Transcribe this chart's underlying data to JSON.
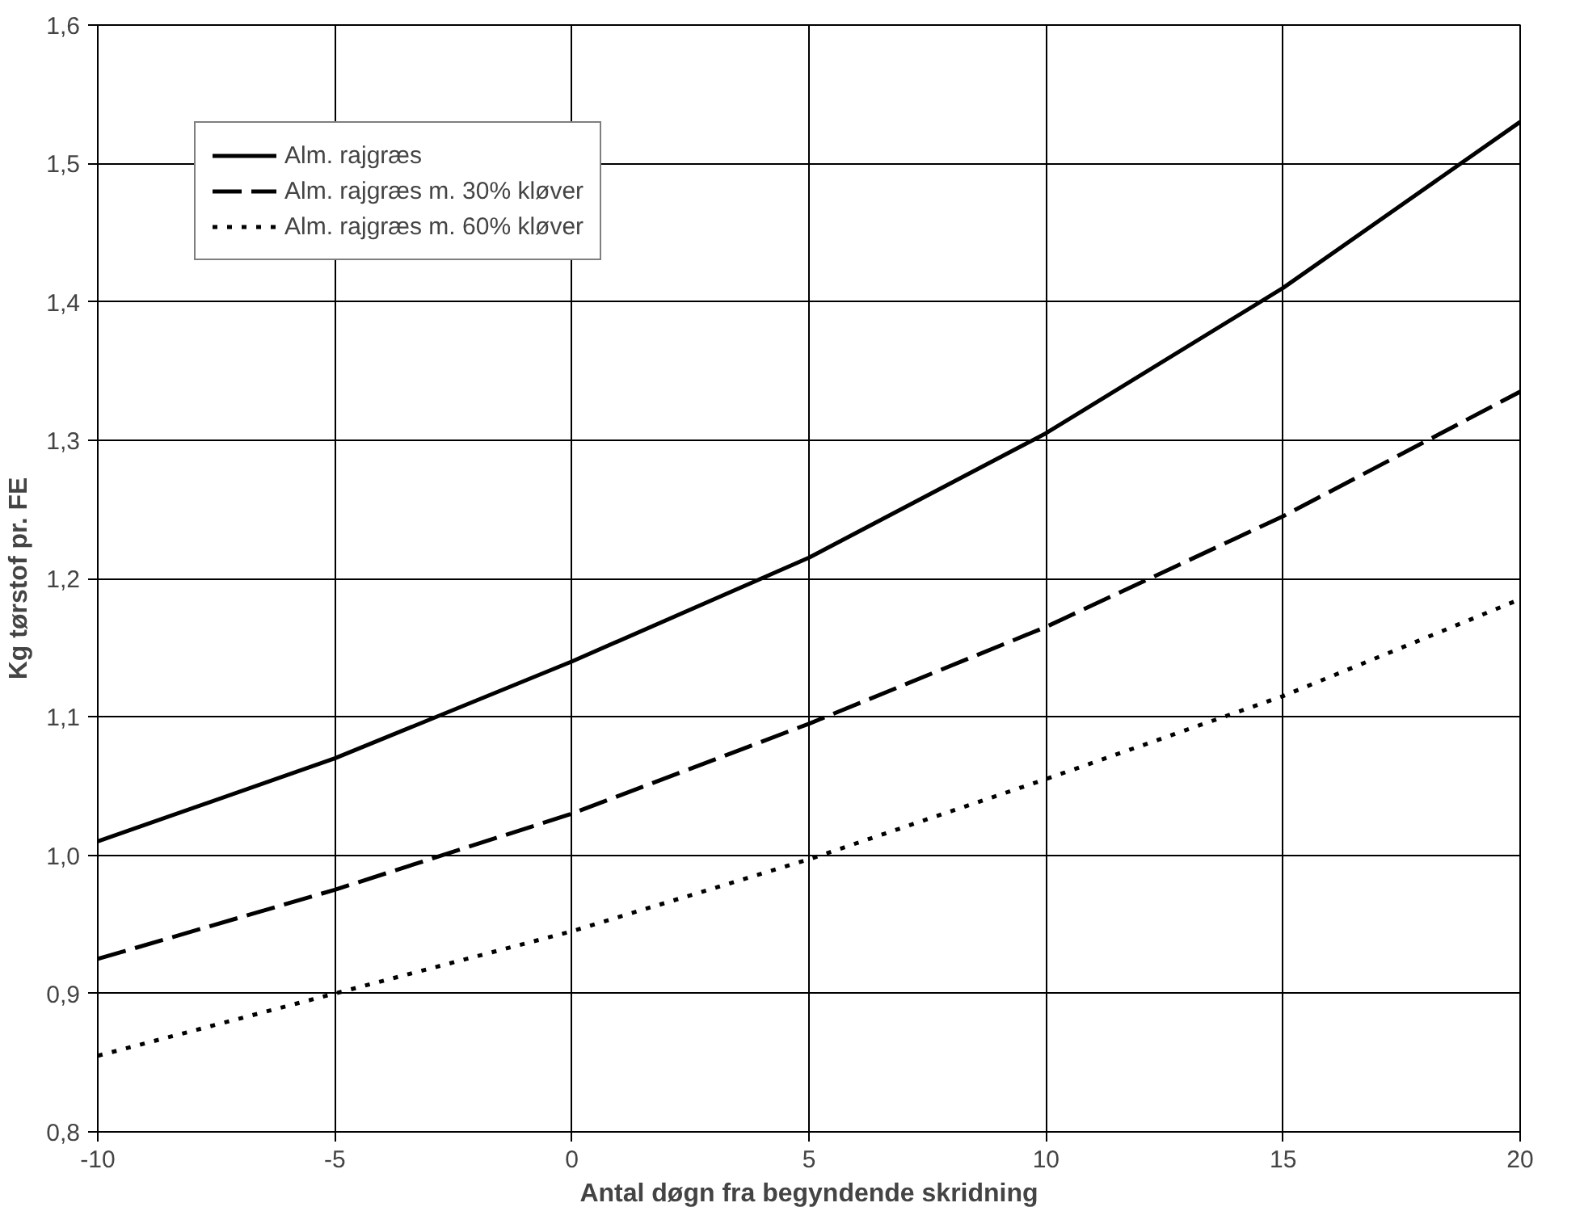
{
  "chart_data": {
    "type": "line",
    "xlabel": "Antal døgn fra begyndende skridning",
    "ylabel": "Kg tørstof pr. FE",
    "x": [
      -10,
      -5,
      0,
      5,
      10,
      15,
      20
    ],
    "series": [
      {
        "name": "Alm. rajgræs",
        "color": "#000000",
        "line_style": "solid",
        "values": [
          1.01,
          1.07,
          1.14,
          1.215,
          1.305,
          1.41,
          1.53
        ]
      },
      {
        "name": "Alm. rajgræs m. 30% kløver",
        "color": "#000000",
        "line_style": "dashed",
        "values": [
          0.925,
          0.975,
          1.03,
          1.095,
          1.165,
          1.245,
          1.335
        ]
      },
      {
        "name": "Alm. rajgræs m. 60% kløver",
        "color": "#000000",
        "line_style": "dotted",
        "values": [
          0.855,
          0.9,
          0.945,
          0.997,
          1.055,
          1.115,
          1.185
        ]
      }
    ],
    "xlim": [
      -10,
      20
    ],
    "xticks": [
      -10,
      -5,
      0,
      5,
      10,
      15,
      20
    ],
    "ylim": [
      0.8,
      1.6
    ],
    "yticks": [
      {
        "value": 0.8,
        "label": "0,8"
      },
      {
        "value": 0.9,
        "label": "0,9"
      },
      {
        "value": 1.0,
        "label": "1,0"
      },
      {
        "value": 1.1,
        "label": "1,1"
      },
      {
        "value": 1.2,
        "label": "1,2"
      },
      {
        "value": 1.3,
        "label": "1,3"
      },
      {
        "value": 1.4,
        "label": "1,4"
      },
      {
        "value": 1.5,
        "label": "1,5"
      },
      {
        "value": 1.6,
        "label": "1,6"
      }
    ],
    "grid": true,
    "legend": "top left",
    "marker": "none"
  }
}
